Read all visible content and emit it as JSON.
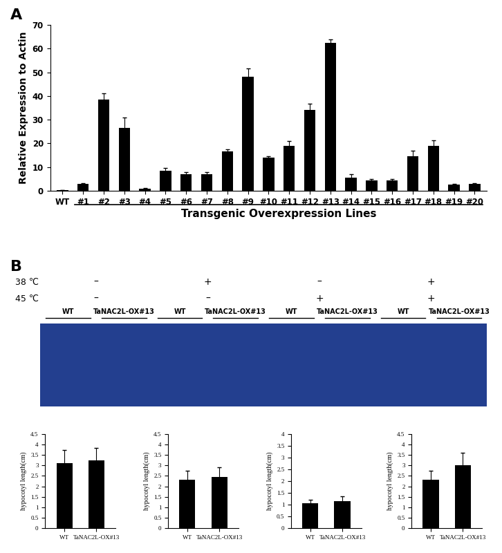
{
  "panel_labels": [
    "A",
    "B"
  ],
  "chart_data": [
    {
      "type": "bar",
      "ylabel": "Relative Expression to Actin",
      "xlabel": "Transgenic Overexpression Lines",
      "categories": [
        "WT",
        "#1",
        "#2",
        "#3",
        "#4",
        "#5",
        "#6",
        "#7",
        "#8",
        "#9",
        "#10",
        "#11",
        "#12",
        "#13",
        "#14",
        "#15",
        "#16",
        "#17",
        "#18",
        "#19",
        "#20"
      ],
      "values": [
        0.2,
        3,
        38.5,
        26.5,
        1,
        8.5,
        7,
        7,
        16.5,
        48,
        14,
        19,
        34,
        62.5,
        5.5,
        4.5,
        4.5,
        14.5,
        19,
        2.5,
        3
      ],
      "errors": [
        0.05,
        0.3,
        2.5,
        4.5,
        0.3,
        1,
        1,
        0.8,
        1,
        3.5,
        0.5,
        2,
        2.8,
        1.5,
        1.5,
        0.5,
        0.5,
        2.5,
        2.3,
        0.4,
        0.3
      ],
      "color": "#000000",
      "ylim": [
        0,
        70
      ],
      "yticks": [
        0,
        10,
        20,
        30,
        40,
        50,
        60,
        70
      ]
    },
    {
      "type": "bar",
      "ylabel": "hypocotyl length(cm)",
      "categories": [
        "WT",
        "TaNAC2L-OX#13"
      ],
      "values": [
        3.1,
        3.25
      ],
      "errors": [
        0.65,
        0.6
      ],
      "color": "#000000",
      "ylim": [
        0,
        4.5
      ],
      "yticks": [
        0,
        0.5,
        1,
        1.5,
        2,
        2.5,
        3,
        3.5,
        4,
        4.5
      ]
    },
    {
      "type": "bar",
      "ylabel": "hypocotyl length(cm)",
      "categories": [
        "WT",
        "TaNAC2L-OX#13"
      ],
      "values": [
        2.3,
        2.45
      ],
      "errors": [
        0.45,
        0.45
      ],
      "color": "#000000",
      "ylim": [
        0,
        4.5
      ],
      "yticks": [
        0,
        0.5,
        1,
        1.5,
        2,
        2.5,
        3,
        3.5,
        4,
        4.5
      ]
    },
    {
      "type": "bar",
      "ylabel": "hypocotyl length(cm)",
      "categories": [
        "WT",
        "TaNAC2L-OX#13"
      ],
      "values": [
        1.05,
        1.15
      ],
      "errors": [
        0.15,
        0.2
      ],
      "color": "#000000",
      "ylim": [
        0,
        4
      ],
      "yticks": [
        0,
        0.5,
        1,
        1.5,
        2,
        2.5,
        3,
        3.5,
        4
      ]
    },
    {
      "type": "bar",
      "ylabel": "hypocotyl length(cm)",
      "categories": [
        "WT",
        "TaNAC2L-OX#13"
      ],
      "values": [
        2.3,
        3.0
      ],
      "errors": [
        0.45,
        0.6
      ],
      "color": "#000000",
      "ylim": [
        0,
        4.5
      ],
      "yticks": [
        0,
        0.5,
        1,
        1.5,
        2,
        2.5,
        3,
        3.5,
        4,
        4.5
      ]
    }
  ],
  "treatments": [
    {
      "label": "38 ℃",
      "marks": [
        "–",
        "+",
        "–",
        "+"
      ]
    },
    {
      "label": "45 ℃",
      "marks": [
        "–",
        "–",
        "+",
        "+"
      ]
    }
  ],
  "photo_groups": [
    "WT",
    "TaNAC2L-OX#13",
    "WT",
    "TaNAC2L-OX#13",
    "WT",
    "TaNAC2L-OX#13",
    "WT",
    "TaNAC2L-OX#13"
  ]
}
